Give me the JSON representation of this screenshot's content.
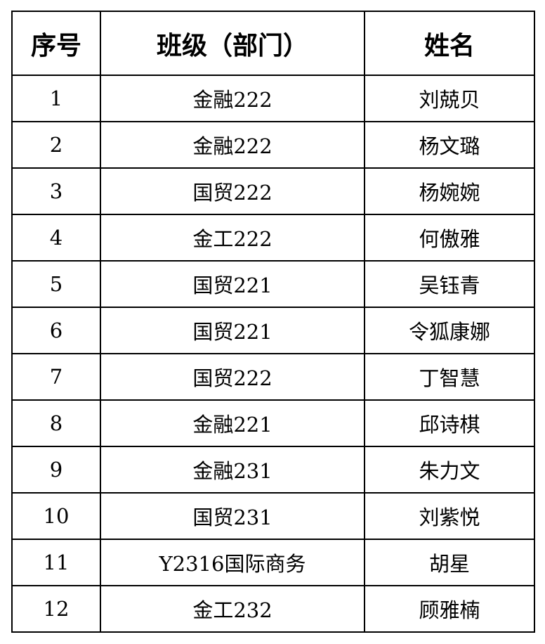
{
  "headers": [
    "序号",
    "班级（部门）",
    "姓名"
  ],
  "rows": [
    {
      "no": "1",
      "class": "金融222",
      "name": "刘兢贝"
    },
    {
      "no": "2",
      "class": "金融222",
      "name": "杨文璐"
    },
    {
      "no": "3",
      "class": "国贸222",
      "name": "杨婉婉"
    },
    {
      "no": "4",
      "class": "金工222",
      "name": "何傲雅"
    },
    {
      "no": "5",
      "class": "国贸221",
      "name": "吴钰青"
    },
    {
      "no": "6",
      "class": "国贸221",
      "name": "令狐康娜"
    },
    {
      "no": "7",
      "class": "国贸222",
      "name": "丁智慧"
    },
    {
      "no": "8",
      "class": "金融221",
      "name": "邱诗棋"
    },
    {
      "no": "9",
      "class": "金融231",
      "name": "朱力文"
    },
    {
      "no": "10",
      "class": "国贸231",
      "name": "刘紫悦"
    },
    {
      "no": "11",
      "class": "Y2316国际商务",
      "name": "胡星"
    },
    {
      "no": "12",
      "class": "金工232",
      "name": "顾雅楠"
    }
  ]
}
